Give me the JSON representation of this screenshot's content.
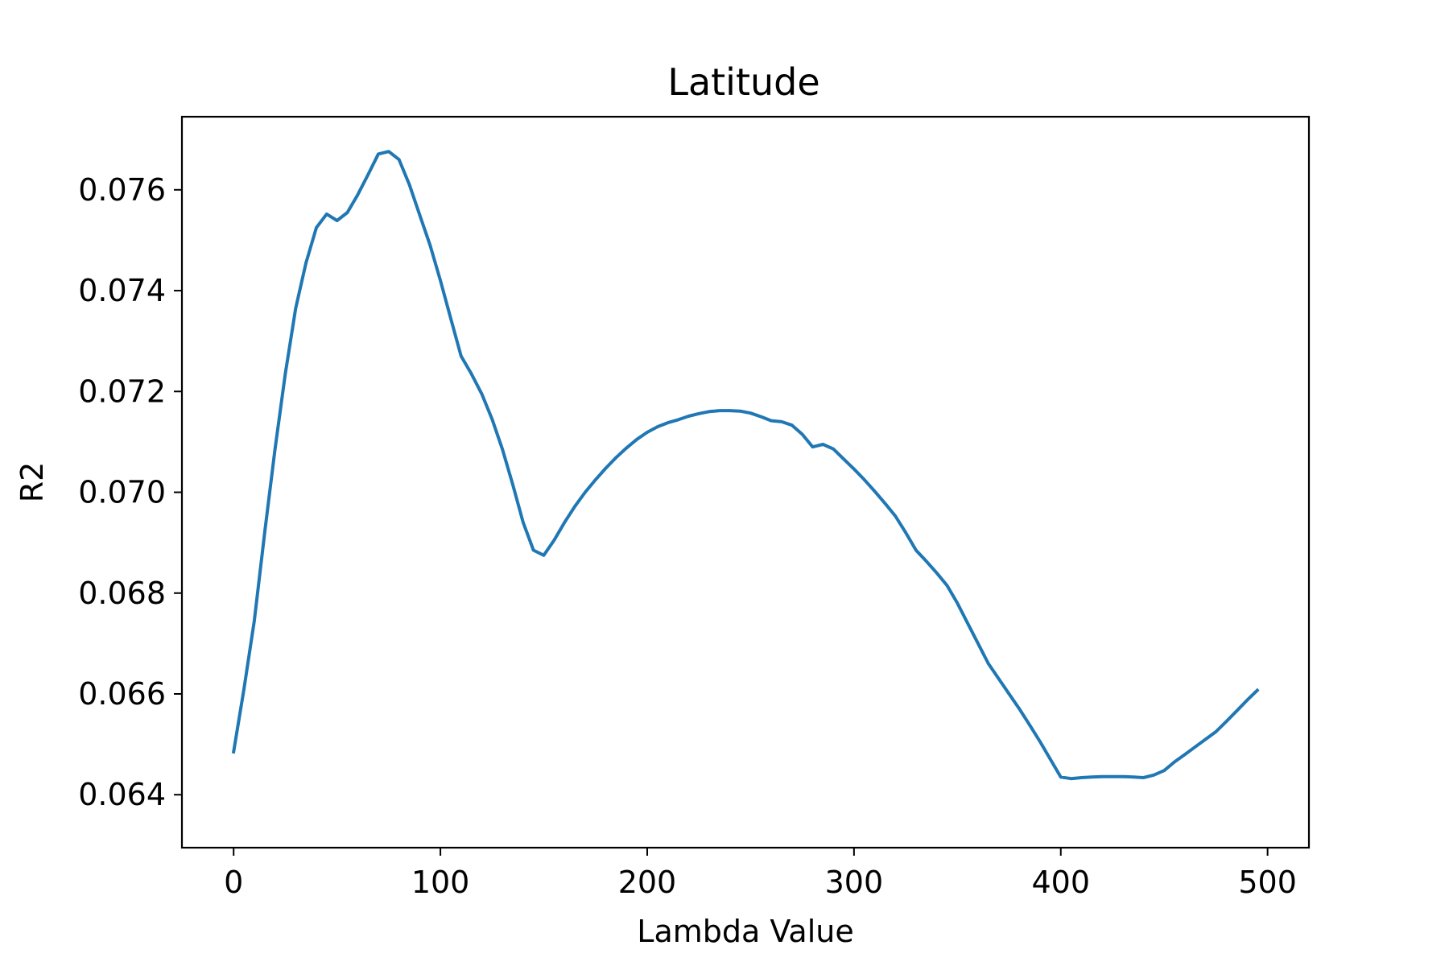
{
  "chart_data": {
    "type": "line",
    "title": "Latitude",
    "xlabel": "Lambda Value",
    "ylabel": "R2",
    "xlim": [
      -25,
      520
    ],
    "ylim": [
      0.06295,
      0.07745
    ],
    "grid": false,
    "x_ticks": [
      0,
      100,
      200,
      300,
      400,
      500
    ],
    "x_tick_labels": [
      "0",
      "100",
      "200",
      "300",
      "400",
      "500"
    ],
    "y_ticks": [
      0.064,
      0.066,
      0.068,
      0.07,
      0.072,
      0.074,
      0.076
    ],
    "y_tick_labels": [
      "0.064",
      "0.066",
      "0.068",
      "0.070",
      "0.072",
      "0.074",
      "0.076"
    ],
    "series": [
      {
        "color": "#1f77b4",
        "points": [
          [
            0,
            0.06485
          ],
          [
            5,
            0.0661
          ],
          [
            10,
            0.06745
          ],
          [
            15,
            0.0692
          ],
          [
            20,
            0.07085
          ],
          [
            25,
            0.07235
          ],
          [
            30,
            0.07365
          ],
          [
            35,
            0.07455
          ],
          [
            40,
            0.07525
          ],
          [
            45,
            0.07552
          ],
          [
            50,
            0.07539
          ],
          [
            55,
            0.07555
          ],
          [
            60,
            0.0759
          ],
          [
            65,
            0.0763
          ],
          [
            70,
            0.07671
          ],
          [
            75,
            0.07676
          ],
          [
            80,
            0.0766
          ],
          [
            85,
            0.0761
          ],
          [
            90,
            0.0755
          ],
          [
            95,
            0.0749
          ],
          [
            100,
            0.0742
          ],
          [
            105,
            0.07345
          ],
          [
            110,
            0.0727
          ],
          [
            115,
            0.07235
          ],
          [
            120,
            0.07195
          ],
          [
            125,
            0.07145
          ],
          [
            130,
            0.07085
          ],
          [
            135,
            0.07015
          ],
          [
            140,
            0.0694
          ],
          [
            145,
            0.06885
          ],
          [
            150,
            0.06875
          ],
          [
            155,
            0.06905
          ],
          [
            160,
            0.0694
          ],
          [
            165,
            0.06972
          ],
          [
            170,
            0.07
          ],
          [
            175,
            0.07025
          ],
          [
            180,
            0.07048
          ],
          [
            185,
            0.07069
          ],
          [
            190,
            0.07088
          ],
          [
            195,
            0.07105
          ],
          [
            200,
            0.07119
          ],
          [
            205,
            0.0713
          ],
          [
            210,
            0.07138
          ],
          [
            215,
            0.07144
          ],
          [
            220,
            0.07151
          ],
          [
            225,
            0.07156
          ],
          [
            230,
            0.0716
          ],
          [
            235,
            0.07162
          ],
          [
            240,
            0.07162
          ],
          [
            245,
            0.07161
          ],
          [
            250,
            0.07157
          ],
          [
            255,
            0.0715
          ],
          [
            260,
            0.07142
          ],
          [
            265,
            0.0714
          ],
          [
            270,
            0.07133
          ],
          [
            275,
            0.07115
          ],
          [
            280,
            0.0709
          ],
          [
            285,
            0.07095
          ],
          [
            290,
            0.07086
          ],
          [
            295,
            0.07066
          ],
          [
            300,
            0.07046
          ],
          [
            305,
            0.07025
          ],
          [
            310,
            0.07002
          ],
          [
            315,
            0.06978
          ],
          [
            320,
            0.06953
          ],
          [
            325,
            0.0692
          ],
          [
            330,
            0.06885
          ],
          [
            335,
            0.06863
          ],
          [
            340,
            0.0684
          ],
          [
            345,
            0.06815
          ],
          [
            350,
            0.0678
          ],
          [
            355,
            0.0674
          ],
          [
            360,
            0.067
          ],
          [
            365,
            0.0666
          ],
          [
            370,
            0.0663
          ],
          [
            375,
            0.066
          ],
          [
            380,
            0.0657
          ],
          [
            385,
            0.06538
          ],
          [
            390,
            0.06505
          ],
          [
            395,
            0.0647
          ],
          [
            400,
            0.06435
          ],
          [
            405,
            0.06432
          ],
          [
            410,
            0.06434
          ],
          [
            415,
            0.06435
          ],
          [
            420,
            0.06436
          ],
          [
            425,
            0.06436
          ],
          [
            430,
            0.06436
          ],
          [
            435,
            0.06435
          ],
          [
            440,
            0.06434
          ],
          [
            445,
            0.06439
          ],
          [
            450,
            0.06448
          ],
          [
            455,
            0.06465
          ],
          [
            460,
            0.0648
          ],
          [
            465,
            0.06495
          ],
          [
            470,
            0.0651
          ],
          [
            475,
            0.06525
          ],
          [
            480,
            0.06545
          ],
          [
            485,
            0.06566
          ],
          [
            490,
            0.06587
          ],
          [
            495,
            0.06607
          ]
        ]
      }
    ]
  }
}
